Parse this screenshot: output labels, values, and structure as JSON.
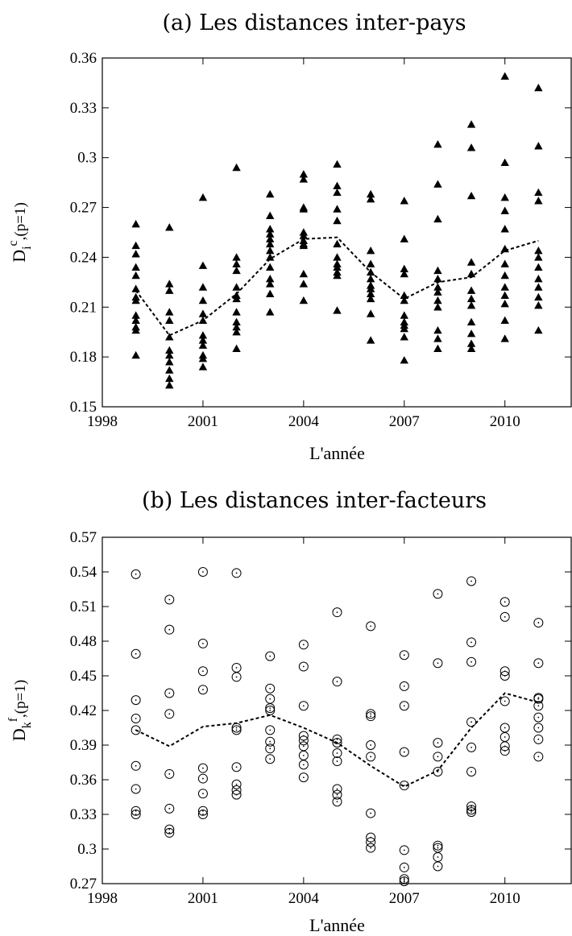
{
  "chart_data": [
    {
      "type": "scatter",
      "title": "(a) Les distances inter-pays",
      "xlabel": "L'année",
      "ylabel": {
        "main": "D",
        "sub": "i",
        "sup": "c",
        "rest": ",(p=1)"
      },
      "marker": "filled-triangle",
      "xlim": [
        1998,
        2012
      ],
      "ylim": [
        0.15,
        0.36
      ],
      "x_ticks": [
        1998,
        2001,
        2004,
        2007,
        2010
      ],
      "y_ticks": [
        0.15,
        0.18,
        0.21,
        0.24,
        0.27,
        0.3,
        0.33,
        0.36
      ],
      "y_tick_labels": [
        "0.15",
        "0.18",
        "0.21",
        "0.24",
        "0.27",
        "0.3",
        "0.33",
        "0.36"
      ],
      "points": [
        {
          "x": 1999,
          "y": [
            0.26,
            0.247,
            0.242,
            0.234,
            0.229,
            0.221,
            0.216,
            0.214,
            0.205,
            0.202,
            0.198,
            0.196,
            0.181
          ]
        },
        {
          "x": 2000,
          "y": [
            0.258,
            0.224,
            0.22,
            0.207,
            0.202,
            0.192,
            0.184,
            0.181,
            0.177,
            0.172,
            0.167,
            0.163
          ]
        },
        {
          "x": 2001,
          "y": [
            0.276,
            0.235,
            0.222,
            0.214,
            0.206,
            0.202,
            0.193,
            0.19,
            0.187,
            0.181,
            0.179,
            0.174
          ]
        },
        {
          "x": 2002,
          "y": [
            0.294,
            0.24,
            0.236,
            0.232,
            0.222,
            0.217,
            0.215,
            0.207,
            0.201,
            0.198,
            0.195,
            0.185
          ]
        },
        {
          "x": 2003,
          "y": [
            0.278,
            0.265,
            0.257,
            0.254,
            0.251,
            0.248,
            0.244,
            0.24,
            0.234,
            0.227,
            0.224,
            0.218,
            0.207
          ]
        },
        {
          "x": 2004,
          "y": [
            0.29,
            0.287,
            0.27,
            0.269,
            0.255,
            0.253,
            0.25,
            0.248,
            0.247,
            0.23,
            0.224,
            0.214
          ]
        },
        {
          "x": 2005,
          "y": [
            0.296,
            0.283,
            0.279,
            0.269,
            0.262,
            0.248,
            0.24,
            0.236,
            0.234,
            0.231,
            0.229,
            0.208
          ]
        },
        {
          "x": 2006,
          "y": [
            0.278,
            0.275,
            0.244,
            0.236,
            0.231,
            0.227,
            0.223,
            0.221,
            0.218,
            0.215,
            0.206,
            0.19
          ]
        },
        {
          "x": 2007,
          "y": [
            0.274,
            0.251,
            0.233,
            0.23,
            0.217,
            0.214,
            0.205,
            0.201,
            0.199,
            0.197,
            0.192,
            0.178
          ]
        },
        {
          "x": 2008,
          "y": [
            0.308,
            0.284,
            0.263,
            0.232,
            0.227,
            0.222,
            0.219,
            0.214,
            0.21,
            0.196,
            0.191,
            0.185
          ]
        },
        {
          "x": 2009,
          "y": [
            0.32,
            0.306,
            0.277,
            0.237,
            0.23,
            0.22,
            0.215,
            0.211,
            0.201,
            0.194,
            0.188,
            0.185
          ]
        },
        {
          "x": 2010,
          "y": [
            0.349,
            0.297,
            0.276,
            0.268,
            0.257,
            0.245,
            0.236,
            0.229,
            0.222,
            0.217,
            0.212,
            0.202,
            0.191
          ]
        },
        {
          "x": 2011,
          "y": [
            0.342,
            0.307,
            0.279,
            0.274,
            0.244,
            0.24,
            0.234,
            0.227,
            0.222,
            0.216,
            0.211,
            0.196
          ]
        }
      ],
      "mean_line": {
        "x": [
          1999,
          2000,
          2001,
          2002,
          2003,
          2004,
          2005,
          2006,
          2007,
          2008,
          2009,
          2010,
          2011
        ],
        "y": [
          0.22,
          0.193,
          0.202,
          0.218,
          0.239,
          0.251,
          0.252,
          0.231,
          0.215,
          0.225,
          0.228,
          0.244,
          0.25
        ]
      }
    },
    {
      "type": "scatter",
      "title": "(b) Les distances inter-facteurs",
      "xlabel": "L'année",
      "ylabel": {
        "main": "D",
        "sub": "k",
        "sup": "f",
        "rest": ",(p=1)"
      },
      "marker": "hollow-circle-dot",
      "xlim": [
        1998,
        2012
      ],
      "ylim": [
        0.27,
        0.57
      ],
      "x_ticks": [
        1998,
        2001,
        2004,
        2007,
        2010
      ],
      "y_ticks": [
        0.27,
        0.3,
        0.33,
        0.36,
        0.39,
        0.42,
        0.45,
        0.48,
        0.51,
        0.54,
        0.57
      ],
      "y_tick_labels": [
        "0.27",
        "0.3",
        "0.33",
        "0.36",
        "0.39",
        "0.42",
        "0.45",
        "0.48",
        "0.51",
        "0.54",
        "0.57"
      ],
      "points": [
        {
          "x": 1999,
          "y": [
            0.538,
            0.469,
            0.429,
            0.413,
            0.403,
            0.372,
            0.352,
            0.333,
            0.33
          ]
        },
        {
          "x": 2000,
          "y": [
            0.516,
            0.49,
            0.435,
            0.417,
            0.365,
            0.335,
            0.317,
            0.314
          ]
        },
        {
          "x": 2001,
          "y": [
            0.54,
            0.478,
            0.454,
            0.438,
            0.37,
            0.361,
            0.348,
            0.333,
            0.33
          ]
        },
        {
          "x": 2002,
          "y": [
            0.539,
            0.457,
            0.449,
            0.405,
            0.403,
            0.371,
            0.356,
            0.351,
            0.347
          ]
        },
        {
          "x": 2003,
          "y": [
            0.467,
            0.439,
            0.43,
            0.422,
            0.42,
            0.403,
            0.393,
            0.387,
            0.378
          ]
        },
        {
          "x": 2004,
          "y": [
            0.477,
            0.458,
            0.424,
            0.398,
            0.394,
            0.389,
            0.381,
            0.373,
            0.362
          ]
        },
        {
          "x": 2005,
          "y": [
            0.505,
            0.445,
            0.395,
            0.392,
            0.383,
            0.376,
            0.352,
            0.347,
            0.341
          ]
        },
        {
          "x": 2006,
          "y": [
            0.493,
            0.417,
            0.415,
            0.39,
            0.38,
            0.331,
            0.31,
            0.306,
            0.301
          ]
        },
        {
          "x": 2007,
          "y": [
            0.468,
            0.441,
            0.424,
            0.384,
            0.355,
            0.299,
            0.284,
            0.274,
            0.272
          ]
        },
        {
          "x": 2008,
          "y": [
            0.521,
            0.461,
            0.392,
            0.38,
            0.367,
            0.303,
            0.301,
            0.293,
            0.285
          ]
        },
        {
          "x": 2009,
          "y": [
            0.532,
            0.479,
            0.462,
            0.41,
            0.388,
            0.367,
            0.337,
            0.334,
            0.332
          ]
        },
        {
          "x": 2010,
          "y": [
            0.514,
            0.501,
            0.454,
            0.45,
            0.428,
            0.405,
            0.397,
            0.389,
            0.385
          ]
        },
        {
          "x": 2011,
          "y": [
            0.496,
            0.461,
            0.431,
            0.43,
            0.424,
            0.414,
            0.405,
            0.395,
            0.38
          ]
        }
      ],
      "mean_line": {
        "x": [
          1999,
          2000,
          2001,
          2002,
          2003,
          2004,
          2005,
          2006,
          2007,
          2008,
          2009,
          2010,
          2011
        ],
        "y": [
          0.403,
          0.389,
          0.406,
          0.409,
          0.416,
          0.405,
          0.392,
          0.372,
          0.354,
          0.368,
          0.405,
          0.435,
          0.427
        ]
      }
    }
  ]
}
